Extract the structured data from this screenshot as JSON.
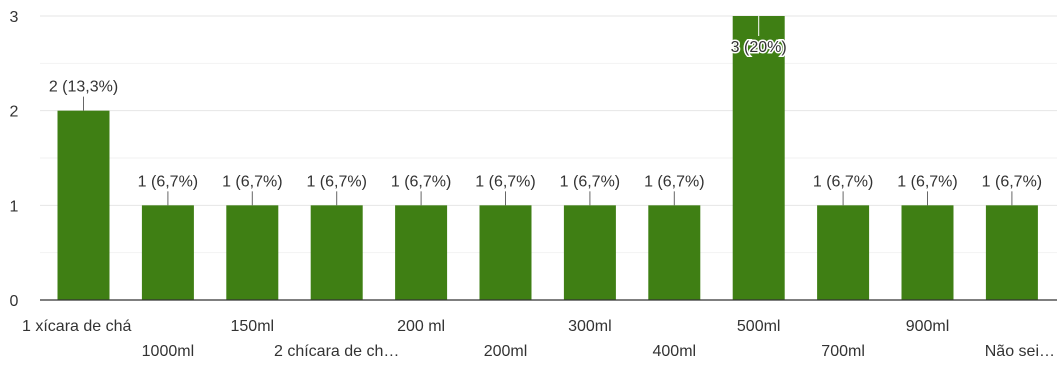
{
  "chart_data": {
    "type": "bar",
    "categories": [
      "1 xícara de chá",
      "1000ml",
      "150ml",
      "2 chícara de ch…",
      "200 ml",
      "200ml",
      "300ml",
      "400ml",
      "500ml",
      "700ml",
      "900ml",
      "Não sei…"
    ],
    "values": [
      2,
      1,
      1,
      1,
      1,
      1,
      1,
      1,
      3,
      1,
      1,
      1
    ],
    "data_labels": [
      "2 (13,3%)",
      "1 (6,7%)",
      "1 (6,7%)",
      "1 (6,7%)",
      "1 (6,7%)",
      "1 (6,7%)",
      "1 (6,7%)",
      "1 (6,7%)",
      "3 (20%)",
      "1 (6,7%)",
      "1 (6,7%)",
      "1 (6,7%)"
    ],
    "yticks": [
      "0",
      "1",
      "2",
      "3"
    ],
    "ylim": [
      0,
      3
    ],
    "grid": true,
    "legend": "none",
    "colors": {
      "bar": "#3f7f14",
      "grid": "#e6e6e6",
      "grid_minor": "#f2f2f2",
      "axis": "#333333",
      "text": "#333333",
      "leader": "#666666"
    }
  }
}
